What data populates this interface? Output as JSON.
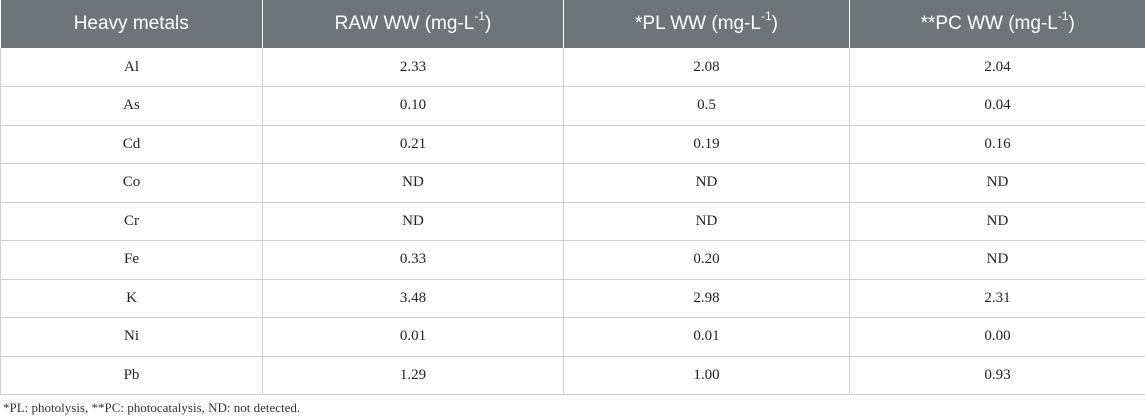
{
  "table": {
    "headers": [
      {
        "text": "Heavy metals",
        "sup": ""
      },
      {
        "text": "RAW WW (mg-L",
        "sup": "-1",
        "close": ")"
      },
      {
        "text": "*PL WW (mg-L",
        "sup": "-1",
        "close": ")"
      },
      {
        "text": "**PC WW (mg-L",
        "sup": "-1",
        "close": ")"
      }
    ],
    "rows": [
      [
        "Al",
        "2.33",
        "2.08",
        "2.04"
      ],
      [
        "As",
        "0.10",
        "0.5",
        "0.04"
      ],
      [
        "Cd",
        "0.21",
        "0.19",
        "0.16"
      ],
      [
        "Co",
        "ND",
        "ND",
        "ND"
      ],
      [
        "Cr",
        "ND",
        "ND",
        "ND"
      ],
      [
        "Fe",
        "0.33",
        "0.20",
        "ND"
      ],
      [
        "K",
        "3.48",
        "2.98",
        "2.31"
      ],
      [
        "Ni",
        "0.01",
        "0.01",
        "0.00"
      ],
      [
        "Pb",
        "1.29",
        "1.00",
        "0.93"
      ]
    ]
  },
  "footnote": "*PL: photolysis, **PC: photocatalysis, ND: not detected.",
  "colors": {
    "header_bg": "#6f7478",
    "header_text": "#ffffff",
    "grid": "#cfcfcf"
  }
}
